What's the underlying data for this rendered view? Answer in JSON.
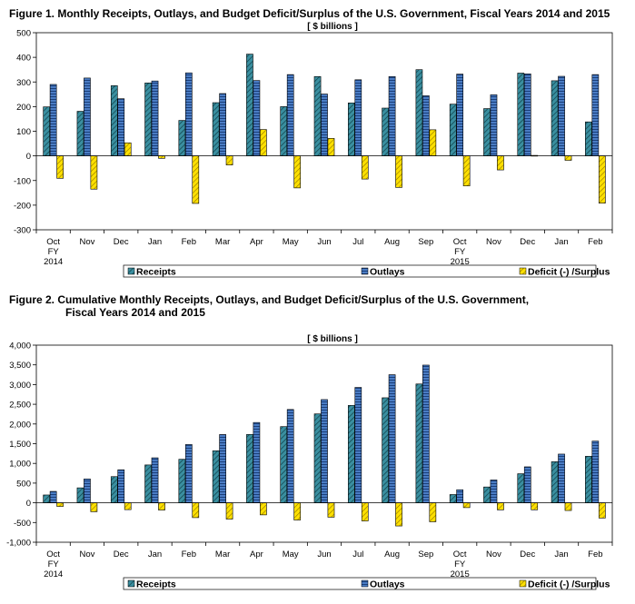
{
  "chart_data": [
    {
      "type": "bar",
      "title": "Figure 1.  Monthly Receipts, Outlays, and Budget Deficit/Surplus of the U.S. Government, Fiscal Years 2014 and 2015",
      "subtitle": "[ $ billions ]",
      "categories": [
        "Oct",
        "Nov",
        "Dec",
        "Jan",
        "Feb",
        "Mar",
        "Apr",
        "May",
        "Jun",
        "Jul",
        "Aug",
        "Sep",
        "Oct",
        "Nov",
        "Dec",
        "Jan",
        "Feb"
      ],
      "fiscal_year_labels": [
        {
          "category_index": 0,
          "lines": [
            "FY",
            "2014"
          ]
        },
        {
          "category_index": 12,
          "lines": [
            "FY",
            "2015"
          ]
        }
      ],
      "ylim": [
        -300,
        500
      ],
      "yticks": [
        -300,
        -200,
        -100,
        0,
        100,
        200,
        300,
        400,
        500
      ],
      "ytick_labels": [
        "-300",
        "-200",
        "-100",
        "0",
        "100",
        "200",
        "300",
        "400",
        "500"
      ],
      "series": [
        {
          "name": "Receipts",
          "color": "#3a8fa0",
          "values": [
            199,
            181,
            285,
            296,
            144,
            216,
            413,
            200,
            322,
            215,
            194,
            350,
            210,
            192,
            336,
            305,
            138
          ]
        },
        {
          "name": "Outlays",
          "color": "#3c6cb6",
          "values": [
            290,
            316,
            232,
            304,
            337,
            253,
            306,
            330,
            251,
            309,
            322,
            244,
            332,
            248,
            333,
            323,
            330
          ]
        },
        {
          "name": "Deficit (-) /Surplus",
          "color": "#ffe000",
          "values": [
            -91,
            -135,
            53,
            -10,
            -193,
            -37,
            107,
            -130,
            71,
            -94,
            -128,
            106,
            -122,
            -57,
            2,
            -18,
            -192
          ]
        }
      ],
      "legend": "bottom",
      "grid": false
    },
    {
      "type": "bar",
      "title_lines": [
        "Figure 2.  Cumulative Monthly Receipts, Outlays, and Budget Deficit/Surplus of the U.S. Government,",
        "Fiscal Years 2014 and 2015"
      ],
      "subtitle": "[ $ billions ]",
      "categories": [
        "Oct",
        "Nov",
        "Dec",
        "Jan",
        "Feb",
        "Mar",
        "Apr",
        "May",
        "Jun",
        "Jul",
        "Aug",
        "Sep",
        "Oct",
        "Nov",
        "Dec",
        "Jan",
        "Feb"
      ],
      "fiscal_year_labels": [
        {
          "category_index": 0,
          "lines": [
            "FY",
            "2014"
          ]
        },
        {
          "category_index": 12,
          "lines": [
            "FY",
            "2015"
          ]
        }
      ],
      "ylim": [
        -1000,
        4000
      ],
      "yticks": [
        -1000,
        -500,
        0,
        500,
        1000,
        1500,
        2000,
        2500,
        3000,
        3500,
        4000
      ],
      "ytick_labels": [
        "-1,000",
        "-500",
        "0",
        "500",
        "1,000",
        "1,500",
        "2,000",
        "2,500",
        "3,000",
        "3,500",
        "4,000"
      ],
      "series": [
        {
          "name": "Receipts",
          "color": "#3a8fa0",
          "values": [
            199,
            380,
            665,
            961,
            1105,
            1321,
            1734,
            1934,
            2256,
            2471,
            2665,
            3015,
            210,
            402,
            738,
            1043,
            1181
          ]
        },
        {
          "name": "Outlays",
          "color": "#3c6cb6",
          "values": [
            290,
            606,
            838,
            1142,
            1479,
            1732,
            2038,
            2368,
            2619,
            2928,
            3250,
            3494,
            332,
            580,
            913,
            1236,
            1566
          ]
        },
        {
          "name": "Deficit (-) /Surplus",
          "color": "#ffe000",
          "values": [
            -91,
            -226,
            -173,
            -183,
            -376,
            -413,
            -306,
            -436,
            -365,
            -459,
            -587,
            -481,
            -122,
            -179,
            -177,
            -195,
            -387
          ]
        }
      ],
      "legend": "bottom",
      "grid": false
    }
  ]
}
